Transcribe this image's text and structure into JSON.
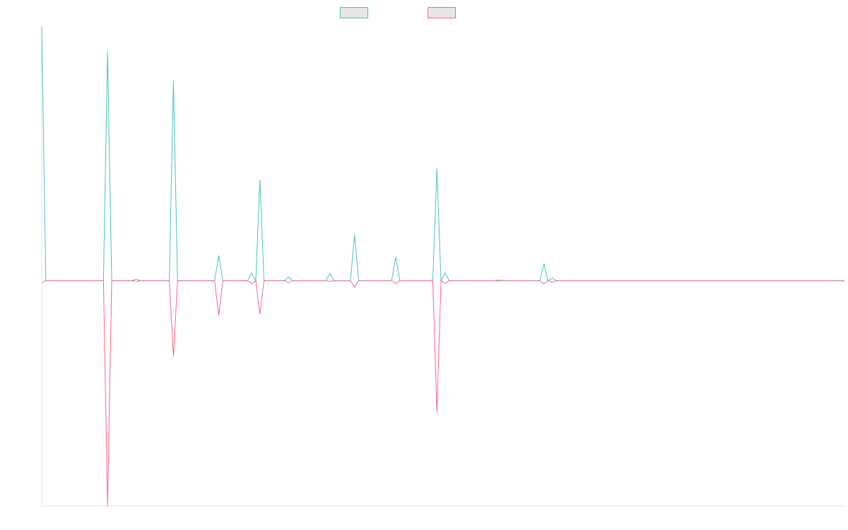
{
  "chart_data": {
    "type": "line",
    "title": "",
    "xlabel": "",
    "ylabel": "",
    "legend_position": "top-center",
    "grid": false,
    "series": [
      {
        "color": "#4bc0c0",
        "fill": "#e6e6e6",
        "points": [
          [
            0,
            100
          ],
          [
            1,
            0
          ],
          [
            15,
            0
          ],
          [
            16,
            90
          ],
          [
            17,
            0
          ],
          [
            22,
            0
          ],
          [
            23,
            0.6
          ],
          [
            24,
            0
          ],
          [
            31,
            0
          ],
          [
            32,
            78.6
          ],
          [
            33,
            0
          ],
          [
            42,
            0
          ],
          [
            43,
            9.9
          ],
          [
            44,
            0
          ],
          [
            50,
            0
          ],
          [
            51,
            3.1
          ],
          [
            52,
            0
          ],
          [
            53,
            39.6
          ],
          [
            54,
            0
          ],
          [
            59,
            0
          ],
          [
            60,
            1.5
          ],
          [
            61,
            0
          ],
          [
            69,
            0
          ],
          [
            70,
            2.8
          ],
          [
            71,
            0
          ],
          [
            75,
            0
          ],
          [
            76,
            18.1
          ],
          [
            77,
            0
          ],
          [
            85,
            0
          ],
          [
            86,
            9.3
          ],
          [
            87,
            0
          ],
          [
            95,
            0
          ],
          [
            96,
            44
          ],
          [
            97,
            0
          ],
          [
            98,
            3.1
          ],
          [
            99,
            0
          ],
          [
            110,
            0
          ],
          [
            111,
            0.3
          ],
          [
            112,
            0
          ],
          [
            121,
            0
          ],
          [
            122,
            6.6
          ],
          [
            123,
            0
          ],
          [
            124,
            1.1
          ],
          [
            125,
            0
          ],
          [
            195,
            0
          ]
        ]
      },
      {
        "color": "#ff6384",
        "fill": "#e6e6e6",
        "points": [
          [
            0,
            -0.8
          ],
          [
            1,
            0
          ],
          [
            15,
            0
          ],
          [
            16,
            -88.5
          ],
          [
            17,
            0
          ],
          [
            22,
            0
          ],
          [
            23,
            -0.3
          ],
          [
            24,
            0
          ],
          [
            31,
            0
          ],
          [
            32,
            -29.8
          ],
          [
            33,
            0
          ],
          [
            42,
            0
          ],
          [
            43,
            -13.6
          ],
          [
            44,
            0
          ],
          [
            50,
            0
          ],
          [
            51,
            -1.2
          ],
          [
            52,
            0
          ],
          [
            53,
            -13.2
          ],
          [
            54,
            0
          ],
          [
            59,
            0
          ],
          [
            60,
            -0.8
          ],
          [
            61,
            0
          ],
          [
            69,
            0
          ],
          [
            70,
            -0.3
          ],
          [
            71,
            0
          ],
          [
            75,
            0
          ],
          [
            76,
            -2.5
          ],
          [
            77,
            0
          ],
          [
            85,
            0
          ],
          [
            86,
            -1
          ],
          [
            87,
            0
          ],
          [
            95,
            0
          ],
          [
            96,
            -51.9
          ],
          [
            97,
            0
          ],
          [
            98,
            -1.1
          ],
          [
            99,
            0
          ],
          [
            121,
            0
          ],
          [
            122,
            -1.2
          ],
          [
            123,
            0
          ],
          [
            124,
            -0.6
          ],
          [
            125,
            0
          ],
          [
            195,
            0
          ]
        ]
      }
    ],
    "xlim": [
      0,
      195
    ],
    "ylim": [
      -88.5,
      100
    ]
  }
}
